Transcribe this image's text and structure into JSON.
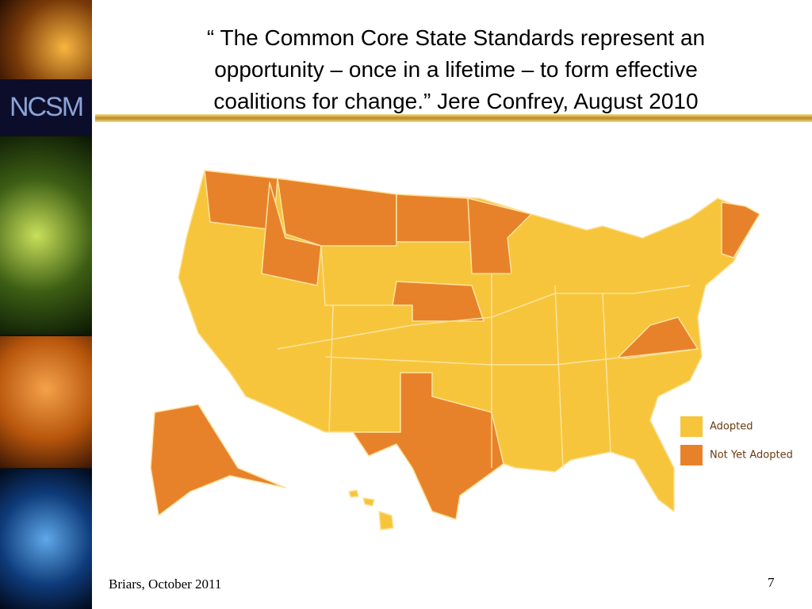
{
  "header": {
    "logo": "NCSM",
    "title_lines": [
      "“ The Common Core State Standards represent an",
      "opportunity – once in a lifetime – to form effective",
      "coalitions for change.” Jere Confrey, August 2010"
    ]
  },
  "legend": [
    {
      "label": "Adopted",
      "color": "#f7c53c"
    },
    {
      "label": "Not Yet Adopted",
      "color": "#e8822a"
    }
  ],
  "footer": {
    "text": "Briars, October 2011",
    "page": "7"
  }
}
